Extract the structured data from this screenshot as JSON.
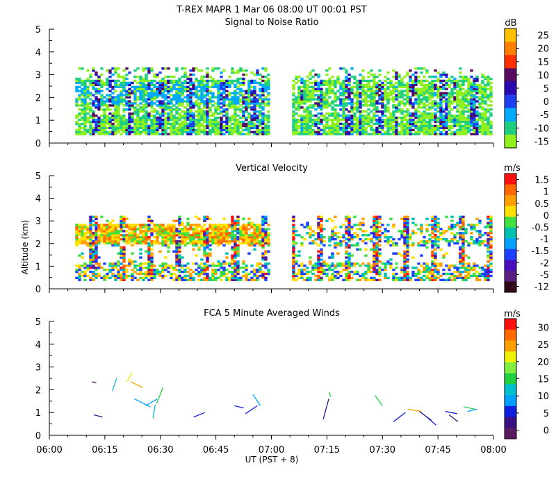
{
  "header": {
    "title": "T-REX   MAPR   1 Mar 06   08:00 UT   00:01   PST"
  },
  "x_axis": {
    "label": "UT  (PST + 8)",
    "range_min": [
      0,
      120
    ],
    "ticks": [
      {
        "t": 0,
        "label": "06:00"
      },
      {
        "t": 15,
        "label": "06:15"
      },
      {
        "t": 30,
        "label": "06:30"
      },
      {
        "t": 45,
        "label": "06:45"
      },
      {
        "t": 60,
        "label": "07:00"
      },
      {
        "t": 75,
        "label": "07:15"
      },
      {
        "t": 90,
        "label": "07:30"
      },
      {
        "t": 105,
        "label": "07:45"
      },
      {
        "t": 120,
        "label": "08:00"
      }
    ]
  },
  "y_axis_label": "Altitude (km)",
  "chart_data": [
    {
      "type": "heatmap",
      "title": "Signal to Noise Ratio",
      "unit": "dB",
      "ylim": [
        0,
        5
      ],
      "y_ticks": [
        "0",
        "1",
        "2",
        "3",
        "4",
        "5"
      ],
      "data_gap_min": [
        59.5,
        65.5
      ],
      "colorbar": {
        "labels": [
          "25",
          "20",
          "15",
          "10",
          "5",
          "0",
          "-5",
          "-10",
          "-15"
        ],
        "colors": [
          "#ffc000",
          "#ff8000",
          "#ff3000",
          "#5a0a60",
          "#2a0ab0",
          "#1e40f0",
          "#00aaff",
          "#20d080",
          "#90f020"
        ]
      }
    },
    {
      "type": "heatmap",
      "title": "Vertical Velocity",
      "unit": "m/s",
      "ylim": [
        0,
        5
      ],
      "y_ticks": [
        "0",
        "1",
        "2",
        "3",
        "4",
        "5"
      ],
      "data_gap_min": [
        59.5,
        65.5
      ],
      "colorbar": {
        "labels": [
          "1.5",
          "1",
          "0.5",
          "0",
          "-0.5",
          "-1",
          "-1.5",
          "-2",
          "-5",
          "-12"
        ],
        "colors": [
          "#ff1010",
          "#ff6a00",
          "#ffa000",
          "#ffe000",
          "#40e040",
          "#00c0b0",
          "#00a0ff",
          "#2040ff",
          "#4a10c0",
          "#5a2080",
          "#300818"
        ]
      }
    },
    {
      "type": "wind-segments",
      "title": "FCA 5 Minute Averaged Winds",
      "unit": "m/s",
      "ylim": [
        0,
        5
      ],
      "y_ticks": [
        "0",
        "1",
        "2",
        "3",
        "4",
        "5"
      ],
      "colorbar": {
        "labels": [
          "30",
          "25",
          "20",
          "15",
          "10",
          "5",
          "0"
        ],
        "colors": [
          "#ff1010",
          "#ff6a00",
          "#ffa000",
          "#f0f000",
          "#80f040",
          "#20d040",
          "#00c0d0",
          "#00a0ff",
          "#1020e0",
          "#3a1080",
          "#5a1a60"
        ]
      },
      "winds": [
        {
          "t": 11.5,
          "alt": 2.35,
          "dx": 1.2,
          "dy": -0.05,
          "c": "#5a1a60"
        },
        {
          "t": 12,
          "alt": 0.9,
          "dx": 2.4,
          "dy": -0.1,
          "c": "#3a1080"
        },
        {
          "t": 17,
          "alt": 1.95,
          "dx": 1.2,
          "dy": 0.55,
          "c": "#00c0d0"
        },
        {
          "t": 21,
          "alt": 2.35,
          "dx": 1.4,
          "dy": 0.4,
          "c": "#f0f000"
        },
        {
          "t": 22,
          "alt": 2.35,
          "dx": 3.2,
          "dy": -0.25,
          "c": "#ffa000"
        },
        {
          "t": 23,
          "alt": 1.6,
          "dx": 4.3,
          "dy": -0.35,
          "c": "#00a0ff"
        },
        {
          "t": 26,
          "alt": 1.3,
          "dx": 3.2,
          "dy": 0.3,
          "c": "#00a0ff"
        },
        {
          "t": 28,
          "alt": 0.75,
          "dx": 0.6,
          "dy": 0.6,
          "c": "#00c0d0"
        },
        {
          "t": 29,
          "alt": 1.4,
          "dx": 1.7,
          "dy": 0.7,
          "c": "#20d040"
        },
        {
          "t": 39,
          "alt": 0.8,
          "dx": 3.0,
          "dy": 0.2,
          "c": "#1020e0"
        },
        {
          "t": 50,
          "alt": 1.3,
          "dx": 2.5,
          "dy": -0.1,
          "c": "#1020e0"
        },
        {
          "t": 53,
          "alt": 0.95,
          "dx": 3.2,
          "dy": 0.35,
          "c": "#1020e0"
        },
        {
          "t": 55,
          "alt": 1.8,
          "dx": 2.0,
          "dy": -0.5,
          "c": "#00a0ff"
        },
        {
          "t": 74,
          "alt": 0.7,
          "dx": 1.5,
          "dy": 0.9,
          "c": "#3a1080"
        },
        {
          "t": 76,
          "alt": 1.7,
          "dx": -0.4,
          "dy": 0.2,
          "c": "#20d040"
        },
        {
          "t": 88,
          "alt": 1.75,
          "dx": 2.0,
          "dy": -0.45,
          "c": "#20d040"
        },
        {
          "t": 93,
          "alt": 0.6,
          "dx": 3.2,
          "dy": 0.4,
          "c": "#1020e0"
        },
        {
          "t": 97,
          "alt": 1.15,
          "dx": 3.5,
          "dy": -0.1,
          "c": "#ffa000"
        },
        {
          "t": 100,
          "alt": 1.05,
          "dx": 3.3,
          "dy": -0.4,
          "c": "#3a1080"
        },
        {
          "t": 102,
          "alt": 0.8,
          "dx": 2.5,
          "dy": -0.35,
          "c": "#1020e0"
        },
        {
          "t": 107,
          "alt": 1.05,
          "dx": 3.2,
          "dy": -0.1,
          "c": "#1020e0"
        },
        {
          "t": 108,
          "alt": 0.9,
          "dx": 2.4,
          "dy": -0.3,
          "c": "#3a1080"
        },
        {
          "t": 112,
          "alt": 1.25,
          "dx": 3.0,
          "dy": -0.1,
          "c": "#20d040"
        },
        {
          "t": 113,
          "alt": 1.05,
          "dx": 2.6,
          "dy": 0.1,
          "c": "#00a0ff"
        }
      ]
    }
  ]
}
